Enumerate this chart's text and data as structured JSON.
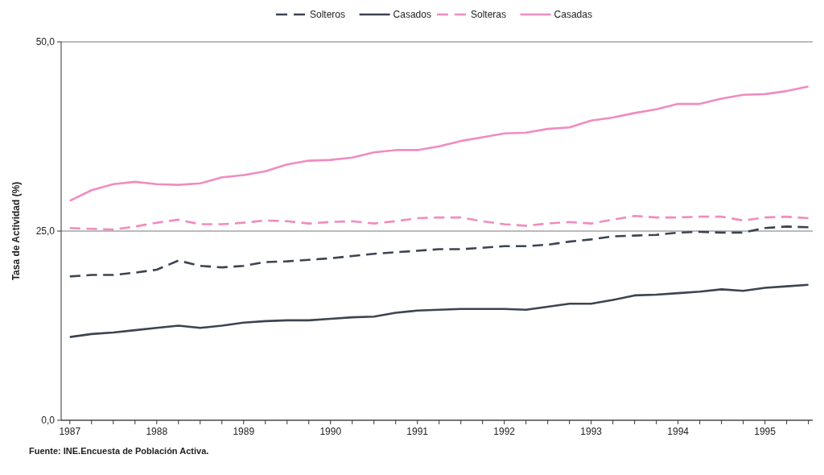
{
  "chart_data": {
    "type": "line",
    "ylabel": "Tasa de Actividad (%)",
    "annotations": [
      "Fuente: INE.Encuesta de Población Activa."
    ],
    "x": [
      1987,
      1987.25,
      1987.5,
      1987.75,
      1988,
      1988.25,
      1988.5,
      1988.75,
      1989,
      1989.25,
      1989.5,
      1989.75,
      1990,
      1990.25,
      1990.5,
      1990.75,
      1991,
      1991.25,
      1991.5,
      1991.75,
      1992,
      1992.25,
      1992.5,
      1992.75,
      1993,
      1993.25,
      1993.5,
      1993.75,
      1994,
      1994.25,
      1994.5,
      1994.75,
      1995,
      1995.25,
      1995.5
    ],
    "series": [
      {
        "name": "Solteros",
        "color": "#3d4451",
        "line_style": "dashed",
        "values": [
          19.0,
          19.2,
          19.2,
          19.5,
          19.9,
          21.1,
          20.4,
          20.2,
          20.4,
          20.9,
          21.0,
          21.2,
          21.4,
          21.7,
          22.0,
          22.2,
          22.4,
          22.6,
          22.6,
          22.8,
          23.0,
          23.0,
          23.2,
          23.6,
          23.9,
          24.3,
          24.4,
          24.5,
          24.8,
          24.9,
          24.8,
          24.8,
          25.4,
          25.6,
          25.5
        ]
      },
      {
        "name": "Casados",
        "color": "#3d4451",
        "line_style": "solid",
        "values": [
          11.0,
          11.4,
          11.6,
          11.9,
          12.2,
          12.5,
          12.2,
          12.5,
          12.9,
          13.1,
          13.2,
          13.2,
          13.4,
          13.6,
          13.7,
          14.2,
          14.5,
          14.6,
          14.7,
          14.7,
          14.7,
          14.6,
          15.0,
          15.4,
          15.4,
          15.9,
          16.5,
          16.6,
          16.8,
          17.0,
          17.3,
          17.1,
          17.5,
          17.7,
          17.9
        ]
      },
      {
        "name": "Solteras",
        "color": "#f08cbf",
        "line_style": "dashed",
        "values": [
          25.4,
          25.3,
          25.2,
          25.6,
          26.1,
          26.5,
          25.9,
          25.9,
          26.1,
          26.4,
          26.3,
          26.0,
          26.2,
          26.3,
          26.0,
          26.3,
          26.7,
          26.8,
          26.8,
          26.3,
          25.9,
          25.7,
          26.0,
          26.2,
          26.0,
          26.5,
          27.0,
          26.8,
          26.8,
          26.9,
          26.9,
          26.4,
          26.8,
          26.9,
          26.7
        ]
      },
      {
        "name": "Casadas",
        "color": "#f08cbf",
        "line_style": "solid",
        "values": [
          29.0,
          30.4,
          31.2,
          31.5,
          31.2,
          31.1,
          31.3,
          32.1,
          32.4,
          32.9,
          33.8,
          34.3,
          34.4,
          34.7,
          35.4,
          35.7,
          35.7,
          36.2,
          36.9,
          37.4,
          37.9,
          38.0,
          38.5,
          38.7,
          39.6,
          40.0,
          40.6,
          41.1,
          41.8,
          41.8,
          42.5,
          43.0,
          43.1,
          43.5,
          44.1
        ]
      }
    ],
    "xlim": [
      1986.9,
      1995.55
    ],
    "xticks": [
      1987,
      {
        "value": 1987.25,
        "label": null
      },
      {
        "value": 1987.5,
        "label": null
      },
      {
        "value": 1987.75,
        "label": null
      },
      1988,
      {
        "value": 1988.25,
        "label": null
      },
      {
        "value": 1988.5,
        "label": null
      },
      {
        "value": 1988.75,
        "label": null
      },
      1989,
      {
        "value": 1989.25,
        "label": null
      },
      {
        "value": 1989.5,
        "label": null
      },
      {
        "value": 1989.75,
        "label": null
      },
      1990,
      {
        "value": 1990.25,
        "label": null
      },
      {
        "value": 1990.5,
        "label": null
      },
      {
        "value": 1990.75,
        "label": null
      },
      1991,
      {
        "value": 1991.25,
        "label": null
      },
      {
        "value": 1991.5,
        "label": null
      },
      {
        "value": 1991.75,
        "label": null
      },
      1992,
      {
        "value": 1992.25,
        "label": null
      },
      {
        "value": 1992.5,
        "label": null
      },
      {
        "value": 1992.75,
        "label": null
      },
      1993,
      {
        "value": 1993.25,
        "label": null
      },
      {
        "value": 1993.5,
        "label": null
      },
      {
        "value": 1993.75,
        "label": null
      },
      1994,
      {
        "value": 1994.25,
        "label": null
      },
      {
        "value": 1994.5,
        "label": null
      },
      {
        "value": 1994.75,
        "label": null
      },
      1995,
      {
        "value": 1995.25,
        "label": null
      },
      {
        "value": 1995.5,
        "label": null
      }
    ],
    "ylim": [
      0,
      50
    ],
    "yticks": [
      {
        "value": 0,
        "label": "0,0"
      },
      {
        "value": 25,
        "label": "25,0"
      },
      {
        "value": 50,
        "label": "50,0"
      }
    ],
    "grid": "y",
    "legend": "top",
    "marker": "none"
  }
}
